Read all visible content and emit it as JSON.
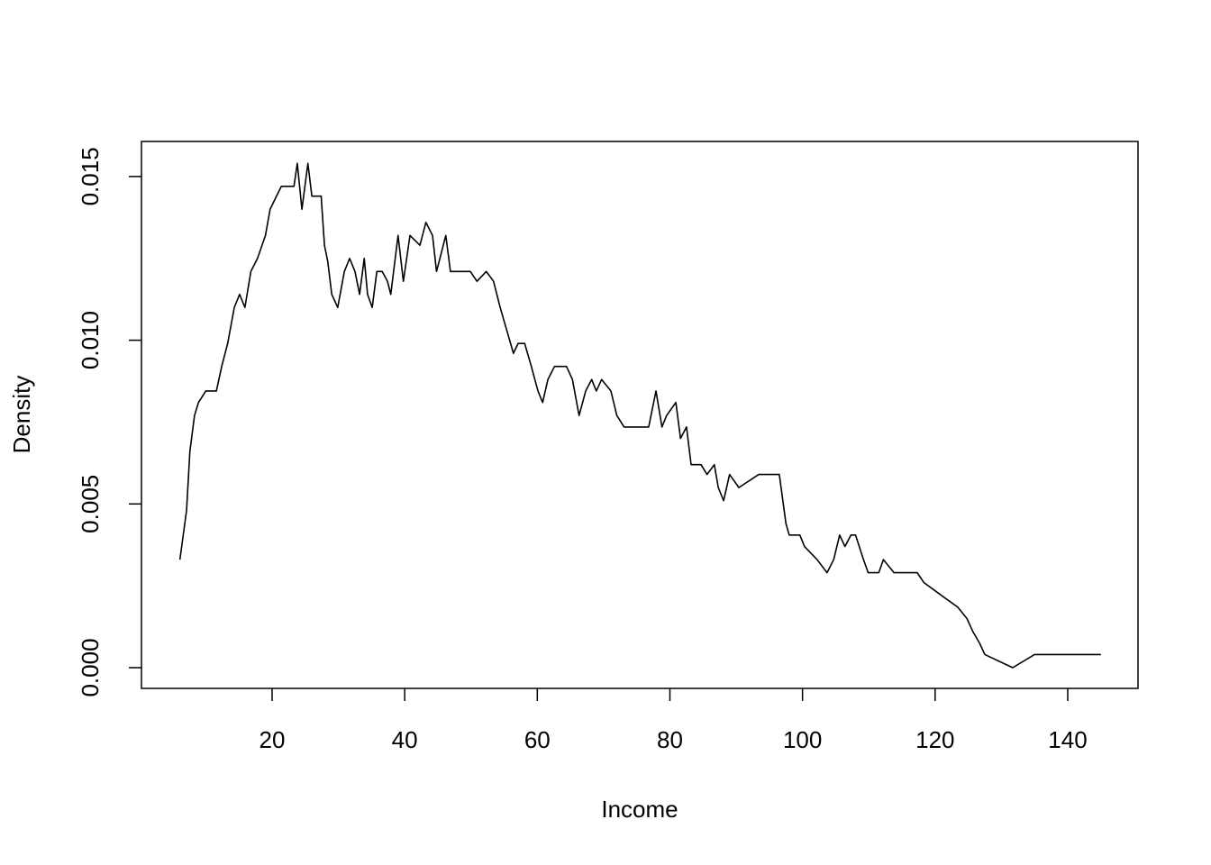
{
  "chart_data": {
    "type": "line",
    "x_label": "Income",
    "y_label": "Density",
    "color": "#000000",
    "xlim": [
      0.3,
      150.6
    ],
    "ylim": [
      -0.000633,
      0.01607
    ],
    "xticks": [
      20,
      40,
      60,
      80,
      100,
      120,
      140
    ],
    "yticks": [
      {
        "value": 0,
        "label": "0.000"
      },
      {
        "value": 0.005,
        "label": "0.005"
      },
      {
        "value": 0.01,
        "label": "0.010"
      },
      {
        "value": 0.015,
        "label": "0.015"
      }
    ],
    "x": [
      6.1,
      6.6,
      7.1,
      7.6,
      8.3,
      8.9,
      10.0,
      11.6,
      12.4,
      13.3,
      14.3,
      15.1,
      15.9,
      16.8,
      17.8,
      19.0,
      19.7,
      21.4,
      23.3,
      23.8,
      24.5,
      25.4,
      26.0,
      27.4,
      27.9,
      28.4,
      29.0,
      29.9,
      30.9,
      31.7,
      32.5,
      33.2,
      33.9,
      34.4,
      35.1,
      35.8,
      36.6,
      37.4,
      37.9,
      39.0,
      39.8,
      40.8,
      42.3,
      43.2,
      44.2,
      44.8,
      46.2,
      46.9,
      48.2,
      49.9,
      50.9,
      52.3,
      53.4,
      54.4,
      55.4,
      56.4,
      57.1,
      58.1,
      59.1,
      60.1,
      60.8,
      61.6,
      62.6,
      64.4,
      65.3,
      66.3,
      67.3,
      68.2,
      68.9,
      69.7,
      71.1,
      72.0,
      73.1,
      76.8,
      77.9,
      78.8,
      79.5,
      80.9,
      81.6,
      82.5,
      83.2,
      84.7,
      85.6,
      86.7,
      87.3,
      88.1,
      89.0,
      90.4,
      93.4,
      96.5,
      97.5,
      98.0,
      99.6,
      100.3,
      102.2,
      103.7,
      104.7,
      105.6,
      106.4,
      107.3,
      108.0,
      109.2,
      109.9,
      111.5,
      112.2,
      113.8,
      117.3,
      118.3,
      121.0,
      123.4,
      124.8,
      125.7,
      126.7,
      127.5,
      131.7,
      135.0,
      145.0
    ],
    "values": [
      0.0033,
      0.00405,
      0.0048,
      0.0066,
      0.0077,
      0.0081,
      0.00845,
      0.00845,
      0.0092,
      0.0099,
      0.011,
      0.0114,
      0.011,
      0.0121,
      0.0125,
      0.0132,
      0.014,
      0.0147,
      0.0147,
      0.0154,
      0.014,
      0.0154,
      0.0144,
      0.0144,
      0.0129,
      0.0124,
      0.0114,
      0.011,
      0.0121,
      0.0125,
      0.0121,
      0.0114,
      0.0125,
      0.0114,
      0.011,
      0.0121,
      0.0121,
      0.0118,
      0.0114,
      0.0132,
      0.0118,
      0.0132,
      0.0129,
      0.0136,
      0.0132,
      0.0121,
      0.0132,
      0.0121,
      0.0121,
      0.0121,
      0.0118,
      0.0121,
      0.0118,
      0.011,
      0.0103,
      0.0096,
      0.0099,
      0.0099,
      0.0092,
      0.00845,
      0.0081,
      0.0088,
      0.0092,
      0.0092,
      0.0088,
      0.0077,
      0.00845,
      0.0088,
      0.00845,
      0.0088,
      0.00845,
      0.0077,
      0.00735,
      0.00735,
      0.00845,
      0.00735,
      0.0077,
      0.0081,
      0.007,
      0.00735,
      0.0062,
      0.0062,
      0.0059,
      0.0062,
      0.0055,
      0.0051,
      0.0059,
      0.0055,
      0.0059,
      0.0059,
      0.0044,
      0.00405,
      0.00405,
      0.0037,
      0.0033,
      0.0029,
      0.0033,
      0.00405,
      0.0037,
      0.00405,
      0.00405,
      0.0033,
      0.0029,
      0.0029,
      0.0033,
      0.0029,
      0.0029,
      0.0026,
      0.0022,
      0.00185,
      0.0015,
      0.0011,
      0.00075,
      0.0004,
      0.0,
      0.0004,
      0.0004
    ]
  }
}
